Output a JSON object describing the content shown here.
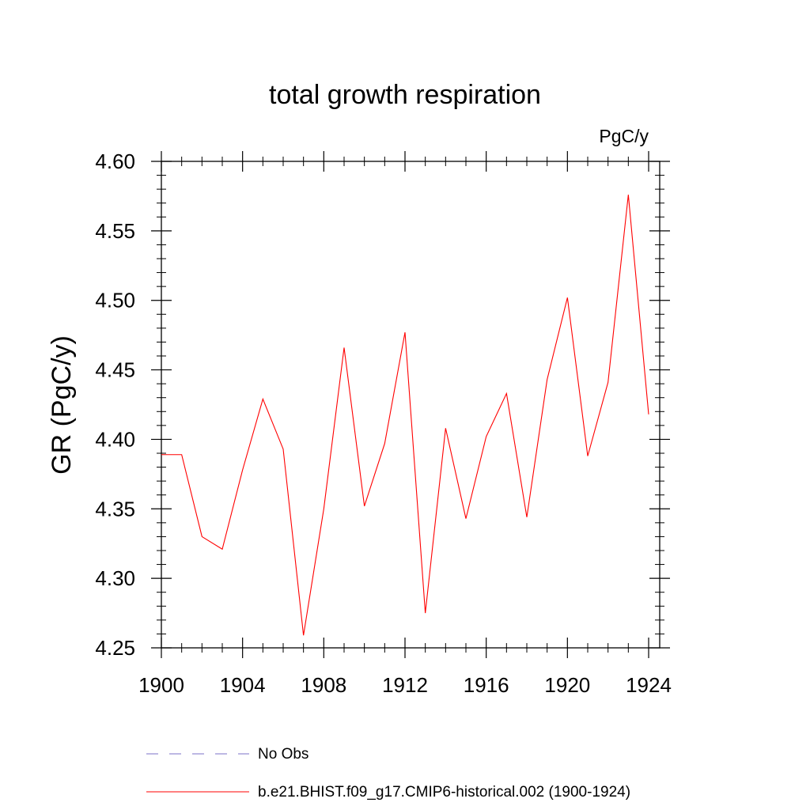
{
  "chart_data": {
    "type": "line",
    "title": "total growth respiration",
    "units_label": "PgC/y",
    "ylabel": "GR  (PgC/y)",
    "xlabel": "",
    "xlim": [
      1900,
      1924
    ],
    "ylim": [
      4.25,
      4.6
    ],
    "x_ticks": [
      1900,
      1904,
      1908,
      1912,
      1916,
      1920,
      1924
    ],
    "y_ticks": [
      "4.60",
      "4.55",
      "4.50",
      "4.45",
      "4.40",
      "4.35",
      "4.30",
      "4.25"
    ],
    "y_tick_values": [
      4.6,
      4.55,
      4.5,
      4.45,
      4.4,
      4.35,
      4.3,
      4.25
    ],
    "x": [
      1900,
      1901,
      1902,
      1903,
      1904,
      1905,
      1906,
      1907,
      1908,
      1909,
      1910,
      1911,
      1912,
      1913,
      1914,
      1915,
      1916,
      1917,
      1918,
      1919,
      1920,
      1921,
      1922,
      1923,
      1924
    ],
    "series": [
      {
        "name": "b.e21.BHIST.f09_g17.CMIP6-historical.002 (1900-1924)",
        "color": "#ff0000",
        "values": [
          4.389,
          4.389,
          4.33,
          4.321,
          4.378,
          4.429,
          4.393,
          4.259,
          4.35,
          4.466,
          4.352,
          4.397,
          4.477,
          4.275,
          4.408,
          4.343,
          4.402,
          4.433,
          4.344,
          4.443,
          4.502,
          4.388,
          4.441,
          4.576,
          4.418
        ]
      }
    ],
    "legend": {
      "placement": "bottom",
      "entries": [
        {
          "label": "No Obs",
          "color": "#7b72c8",
          "style": "dashed"
        },
        {
          "label": "b.e21.BHIST.f09_g17.CMIP6-historical.002 (1900-1924)",
          "color": "#ff0000",
          "style": "solid"
        }
      ]
    }
  }
}
